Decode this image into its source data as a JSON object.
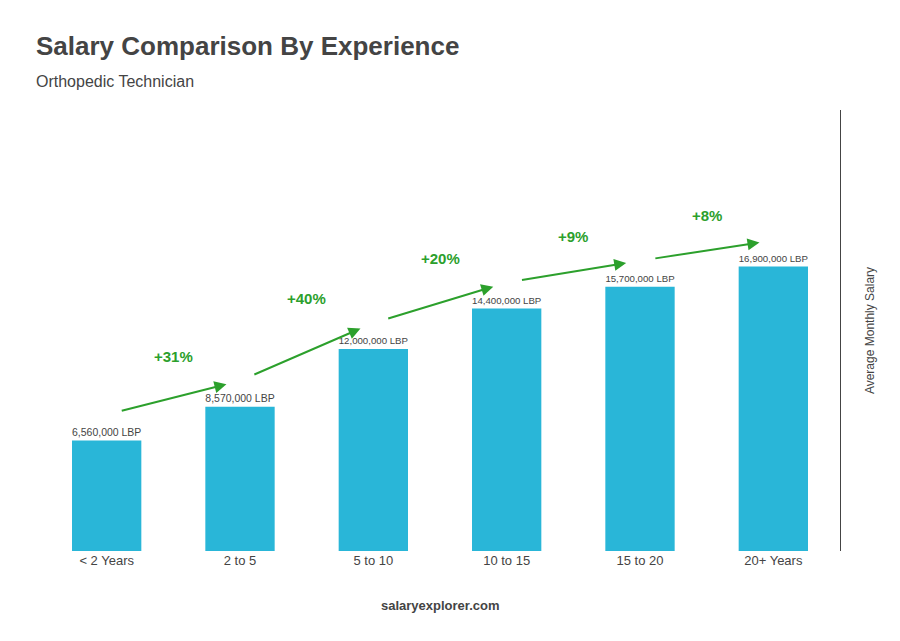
{
  "chart_data": {
    "type": "bar",
    "title": "Salary Comparison By Experience",
    "subtitle": "Orthopedic Technician",
    "ylabel": "Average Monthly Salary",
    "categories": [
      "< 2 Years",
      "2 to 5",
      "5 to 10",
      "10 to 15",
      "15 to 20",
      "20+ Years"
    ],
    "values": [
      6560000,
      8570000,
      12000000,
      14400000,
      15700000,
      16900000
    ],
    "value_labels": [
      "6,560,000 LBP",
      "8,570,000 LBP",
      "12,000,000 LBP",
      "14,400,000 LBP",
      "15,700,000 LBP",
      "16,900,000 LBP"
    ],
    "data_labels": true,
    "color": "#29b6d8",
    "annotations": [
      "+31%",
      "+40%",
      "+20%",
      "+9%",
      "+8%"
    ],
    "footer": "salaryexplorer.com",
    "ylim": [
      0,
      26195000
    ],
    "grid": false,
    "tick_labels": "x"
  }
}
